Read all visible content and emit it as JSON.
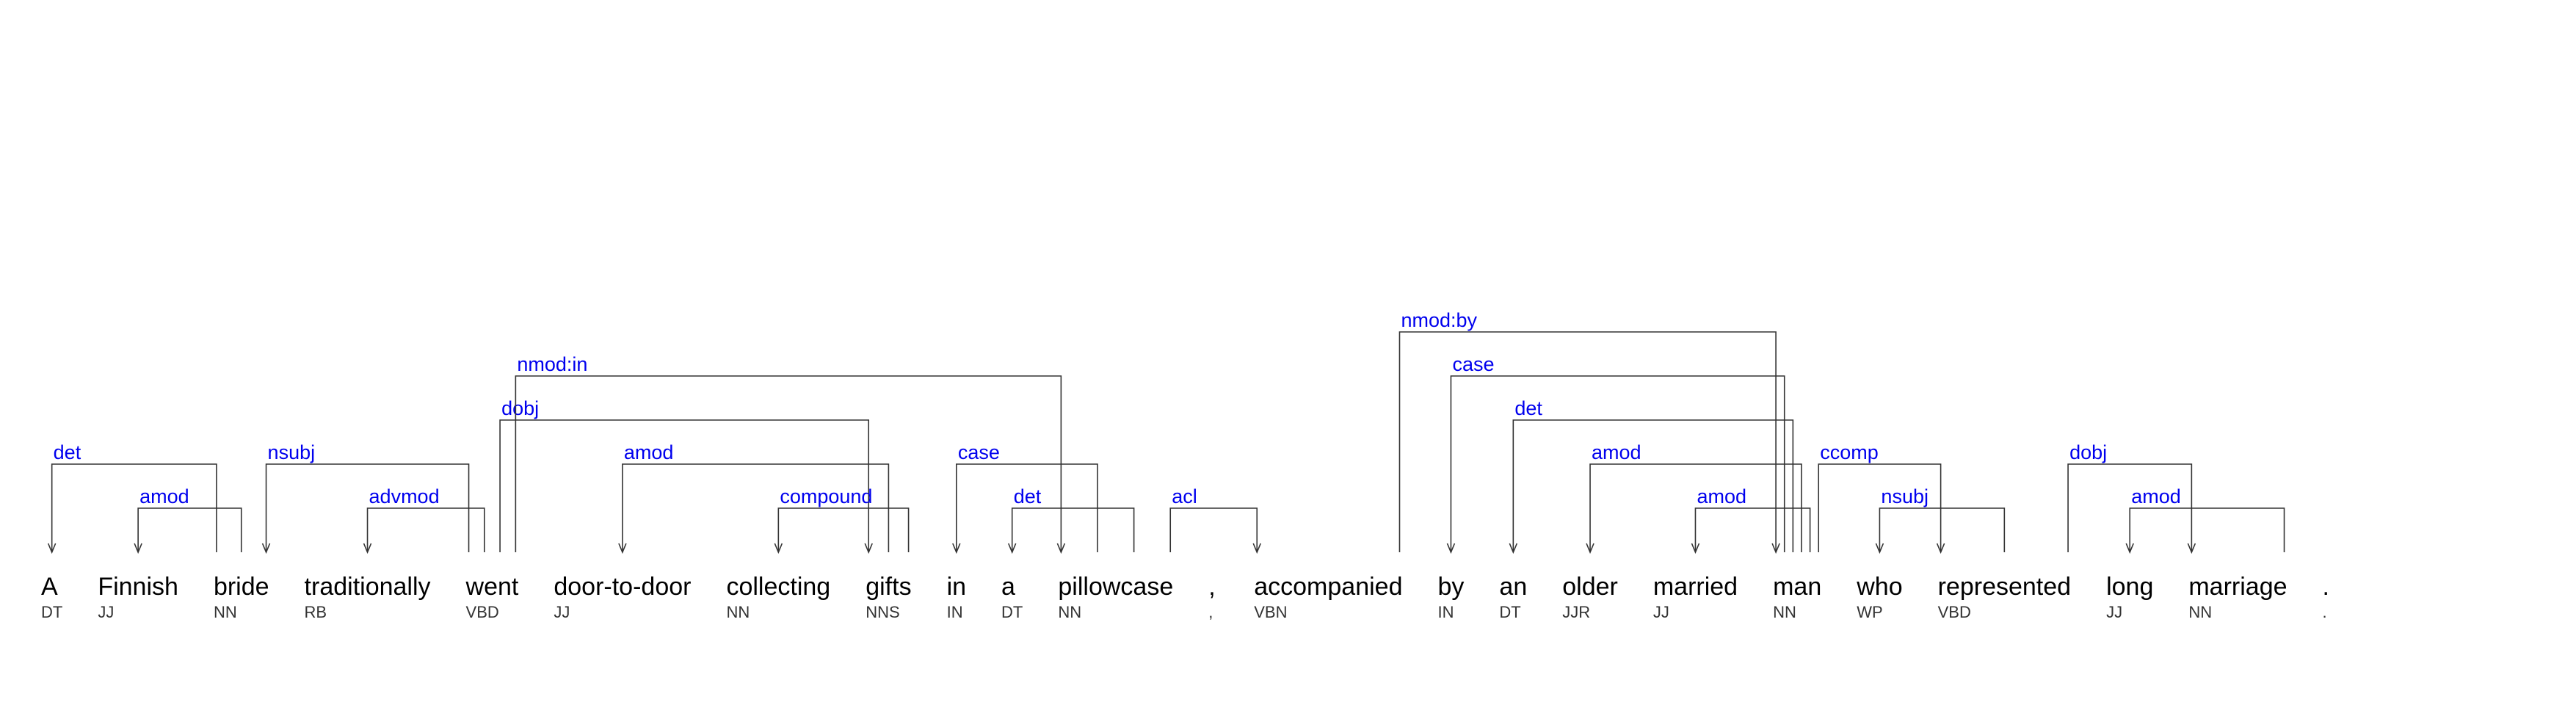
{
  "tokens": [
    {
      "word": "A",
      "tag": "DT"
    },
    {
      "word": "Finnish",
      "tag": "JJ"
    },
    {
      "word": "bride",
      "tag": "NN"
    },
    {
      "word": "traditionally",
      "tag": "RB"
    },
    {
      "word": "went",
      "tag": "VBD"
    },
    {
      "word": "door-to-door",
      "tag": "JJ"
    },
    {
      "word": "collecting",
      "tag": "NN"
    },
    {
      "word": "gifts",
      "tag": "NNS"
    },
    {
      "word": "in",
      "tag": "IN"
    },
    {
      "word": "a",
      "tag": "DT"
    },
    {
      "word": "pillowcase",
      "tag": "NN"
    },
    {
      "word": ",",
      "tag": ","
    },
    {
      "word": "accompanied",
      "tag": "VBN"
    },
    {
      "word": "by",
      "tag": "IN"
    },
    {
      "word": "an",
      "tag": "DT"
    },
    {
      "word": "older",
      "tag": "JJR"
    },
    {
      "word": "married",
      "tag": "JJ"
    },
    {
      "word": "man",
      "tag": "NN"
    },
    {
      "word": "who",
      "tag": "WP"
    },
    {
      "word": "represented",
      "tag": "VBD"
    },
    {
      "word": "long",
      "tag": "JJ"
    },
    {
      "word": "marriage",
      "tag": "NN"
    },
    {
      "word": ".",
      "tag": "."
    }
  ],
  "arcs": [
    {
      "label": "det",
      "head": 2,
      "dep": 0
    },
    {
      "label": "amod",
      "head": 2,
      "dep": 1
    },
    {
      "label": "nsubj",
      "head": 4,
      "dep": 2
    },
    {
      "label": "advmod",
      "head": 4,
      "dep": 3
    },
    {
      "label": "dobj",
      "head": 4,
      "dep": 7
    },
    {
      "label": "nmod:in",
      "head": 4,
      "dep": 10
    },
    {
      "label": "amod",
      "head": 7,
      "dep": 5
    },
    {
      "label": "compound",
      "head": 7,
      "dep": 6
    },
    {
      "label": "case",
      "head": 10,
      "dep": 8
    },
    {
      "label": "det",
      "head": 10,
      "dep": 9
    },
    {
      "label": "acl",
      "head": 10,
      "dep": 12
    },
    {
      "label": "nmod:by",
      "head": 12,
      "dep": 17
    },
    {
      "label": "case",
      "head": 17,
      "dep": 13
    },
    {
      "label": "det",
      "head": 17,
      "dep": 14
    },
    {
      "label": "amod",
      "head": 17,
      "dep": 15
    },
    {
      "label": "amod",
      "head": 17,
      "dep": 16
    },
    {
      "label": "ccomp",
      "head": 17,
      "dep": 19
    },
    {
      "label": "nsubj",
      "head": 19,
      "dep": 18
    },
    {
      "label": "dobj",
      "head": 19,
      "dep": 21
    },
    {
      "label": "amod",
      "head": 21,
      "dep": 20
    }
  ]
}
